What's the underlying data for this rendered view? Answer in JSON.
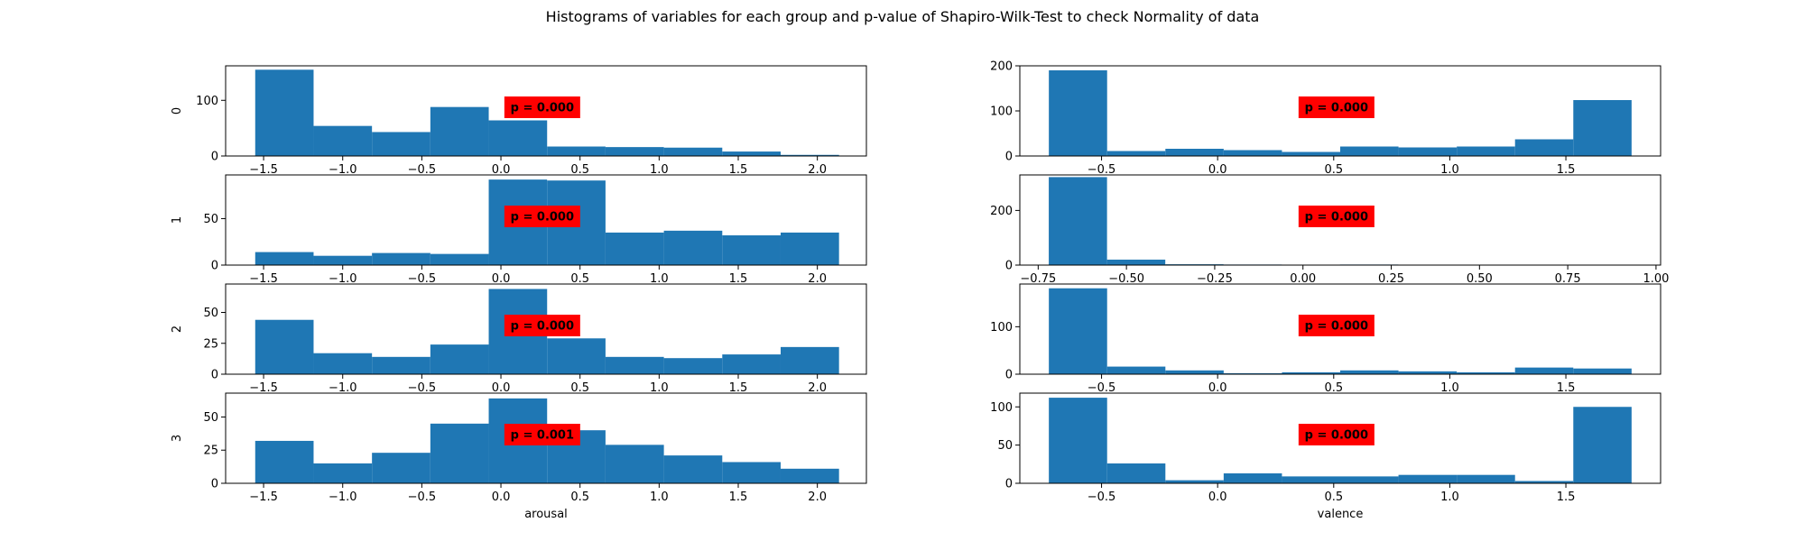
{
  "figure": {
    "title": "Histograms of variables for each group and p-value of Shapiro-Wilk-Test to check Normality of data"
  },
  "colors": {
    "bar": "#1f77b4",
    "pbox": "#ff0000"
  },
  "chart_data": [
    {
      "type": "bar",
      "column": 0,
      "row": 0,
      "ylabel": "0",
      "xlabel": "",
      "xlim": [
        -1.74,
        2.31
      ],
      "ylim": [
        0,
        162
      ],
      "xticks": [
        -1.5,
        -1.0,
        -0.5,
        0.0,
        0.5,
        1.0,
        1.5,
        2.0
      ],
      "xtick_labels": [
        "−1.5",
        "−1.0",
        "−0.5",
        "0.0",
        "0.5",
        "1.0",
        "1.5",
        "2.0"
      ],
      "yticks": [
        0,
        100
      ],
      "ytick_labels": [
        "0",
        "100"
      ],
      "bin_edges": [
        -1.553,
        -1.184,
        -0.815,
        -0.446,
        -0.077,
        0.292,
        0.661,
        1.03,
        1.399,
        1.768,
        2.137
      ],
      "values": [
        155,
        54,
        43,
        88,
        64,
        17,
        16,
        15,
        8,
        2
      ],
      "annotation": "p = 0.000"
    },
    {
      "type": "bar",
      "column": 0,
      "row": 1,
      "ylabel": "1",
      "xlabel": "",
      "xlim": [
        -1.74,
        2.31
      ],
      "ylim": [
        0,
        97
      ],
      "xticks": [
        -1.5,
        -1.0,
        -0.5,
        0.0,
        0.5,
        1.0,
        1.5,
        2.0
      ],
      "xtick_labels": [
        "−1.5",
        "−1.0",
        "−0.5",
        "0.0",
        "0.5",
        "1.0",
        "1.5",
        "2.0"
      ],
      "yticks": [
        0,
        50
      ],
      "ytick_labels": [
        "0",
        "50"
      ],
      "bin_edges": [
        -1.553,
        -1.184,
        -0.815,
        -0.446,
        -0.077,
        0.292,
        0.661,
        1.03,
        1.399,
        1.768,
        2.137
      ],
      "values": [
        14,
        10,
        13,
        12,
        92,
        91,
        35,
        37,
        32,
        35
      ],
      "annotation": "p = 0.000"
    },
    {
      "type": "bar",
      "column": 0,
      "row": 2,
      "ylabel": "2",
      "xlabel": "",
      "xlim": [
        -1.74,
        2.31
      ],
      "ylim": [
        0,
        73
      ],
      "xticks": [
        -1.5,
        -1.0,
        -0.5,
        0.0,
        0.5,
        1.0,
        1.5,
        2.0
      ],
      "xtick_labels": [
        "−1.5",
        "−1.0",
        "−0.5",
        "0.0",
        "0.5",
        "1.0",
        "1.5",
        "2.0"
      ],
      "yticks": [
        0,
        25,
        50
      ],
      "ytick_labels": [
        "0",
        "25",
        "50"
      ],
      "bin_edges": [
        -1.553,
        -1.184,
        -0.815,
        -0.446,
        -0.077,
        0.292,
        0.661,
        1.03,
        1.399,
        1.768,
        2.137
      ],
      "values": [
        44,
        17,
        14,
        24,
        69,
        29,
        14,
        13,
        16,
        22
      ],
      "annotation": "p = 0.000"
    },
    {
      "type": "bar",
      "column": 0,
      "row": 3,
      "ylabel": "3",
      "xlabel": "arousal",
      "xlim": [
        -1.74,
        2.31
      ],
      "ylim": [
        0,
        68
      ],
      "xticks": [
        -1.5,
        -1.0,
        -0.5,
        0.0,
        0.5,
        1.0,
        1.5,
        2.0
      ],
      "xtick_labels": [
        "−1.5",
        "−1.0",
        "−0.5",
        "0.0",
        "0.5",
        "1.0",
        "1.5",
        "2.0"
      ],
      "yticks": [
        0,
        25,
        50
      ],
      "ytick_labels": [
        "0",
        "25",
        "50"
      ],
      "bin_edges": [
        -1.553,
        -1.184,
        -0.815,
        -0.446,
        -0.077,
        0.292,
        0.661,
        1.03,
        1.399,
        1.768,
        2.137
      ],
      "values": [
        32,
        15,
        23,
        45,
        64,
        40,
        29,
        21,
        16,
        11
      ],
      "annotation": "p = 0.001"
    },
    {
      "type": "bar",
      "column": 1,
      "row": 0,
      "ylabel": "",
      "xlabel": "",
      "xlim": [
        -0.852,
        1.908
      ],
      "ylim": [
        0,
        200
      ],
      "xticks": [
        -0.5,
        0.0,
        0.5,
        1.0,
        1.5
      ],
      "xtick_labels": [
        "−0.5",
        "0.0",
        "0.5",
        "1.0",
        "1.5"
      ],
      "yticks": [
        0,
        100,
        200
      ],
      "ytick_labels": [
        "0",
        "100",
        "200"
      ],
      "bin_edges": [
        -0.727,
        -0.476,
        -0.225,
        0.026,
        0.277,
        0.528,
        0.779,
        1.03,
        1.281,
        1.532,
        1.783
      ],
      "values": [
        190,
        11,
        16,
        13,
        9,
        21,
        19,
        21,
        37,
        124
      ],
      "annotation": "p = 0.000"
    },
    {
      "type": "bar",
      "column": 1,
      "row": 1,
      "ylabel": "",
      "xlabel": "",
      "xlim": [
        -0.802,
        1.013
      ],
      "ylim": [
        0,
        330
      ],
      "xticks": [
        -0.75,
        -0.5,
        -0.25,
        0.0,
        0.25,
        0.5,
        0.75,
        1.0
      ],
      "xtick_labels": [
        "−0.75",
        "−0.50",
        "−0.25",
        "0.00",
        "0.25",
        "0.50",
        "0.75",
        "1.00"
      ],
      "yticks": [
        0,
        200
      ],
      "ytick_labels": [
        "0",
        "200"
      ],
      "bin_edges": [
        -0.72,
        -0.555,
        -0.39,
        -0.225,
        -0.06,
        0.105,
        0.27,
        0.435,
        0.6,
        0.765,
        0.93
      ],
      "values": [
        322,
        20,
        3,
        2,
        1,
        2,
        1,
        1,
        0,
        1
      ],
      "annotation": "p = 0.000"
    },
    {
      "type": "bar",
      "column": 1,
      "row": 2,
      "ylabel": "",
      "xlabel": "",
      "xlim": [
        -0.852,
        1.908
      ],
      "ylim": [
        0,
        190
      ],
      "xticks": [
        -0.5,
        0.0,
        0.5,
        1.0,
        1.5
      ],
      "xtick_labels": [
        "−0.5",
        "0.0",
        "0.5",
        "1.0",
        "1.5"
      ],
      "yticks": [
        0,
        100
      ],
      "ytick_labels": [
        "0",
        "100"
      ],
      "bin_edges": [
        -0.727,
        -0.476,
        -0.225,
        0.026,
        0.277,
        0.528,
        0.779,
        1.03,
        1.281,
        1.532,
        1.783
      ],
      "values": [
        181,
        16,
        8,
        2,
        4,
        8,
        6,
        4,
        14,
        12
      ],
      "annotation": "p = 0.000"
    },
    {
      "type": "bar",
      "column": 1,
      "row": 3,
      "ylabel": "",
      "xlabel": "valence",
      "xlim": [
        -0.852,
        1.908
      ],
      "ylim": [
        0,
        118
      ],
      "xticks": [
        -0.5,
        0.0,
        0.5,
        1.0,
        1.5
      ],
      "xtick_labels": [
        "−0.5",
        "0.0",
        "0.5",
        "1.0",
        "1.5"
      ],
      "yticks": [
        0,
        50,
        100
      ],
      "ytick_labels": [
        "0",
        "50",
        "100"
      ],
      "bin_edges": [
        -0.727,
        -0.476,
        -0.225,
        0.026,
        0.277,
        0.528,
        0.779,
        1.03,
        1.281,
        1.532,
        1.783
      ],
      "values": [
        112,
        26,
        4,
        13,
        9,
        9,
        11,
        11,
        3,
        100
      ],
      "annotation": "p = 0.000"
    }
  ]
}
